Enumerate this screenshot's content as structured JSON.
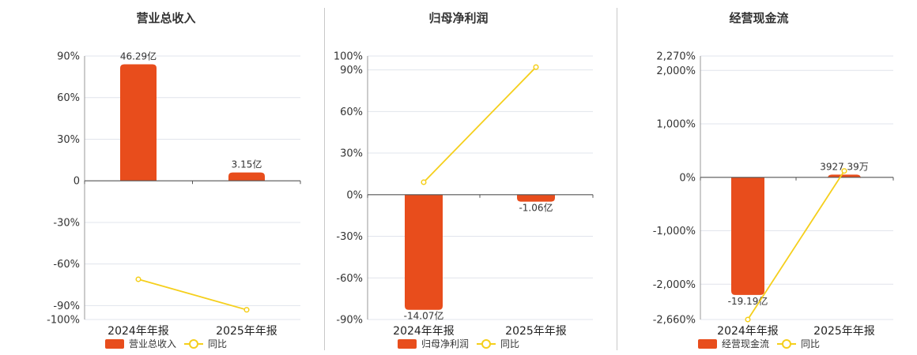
{
  "colors": {
    "bar": "#e84d1c",
    "line": "#f5cf1c",
    "grid": "#e1e4ec",
    "zero": "#555555",
    "axis": "#999999"
  },
  "chart_data": [
    {
      "type": "bar",
      "title": "营业总收入",
      "categories": [
        "2024年年报",
        "2025年年报"
      ],
      "series": [
        {
          "name": "营业总收入",
          "type": "bar",
          "values": [
            46.29,
            3.15
          ],
          "unit": "亿",
          "labels": [
            "46.29亿",
            "3.15亿"
          ],
          "display_percent": [
            84,
            6
          ]
        },
        {
          "name": "同比",
          "type": "line",
          "values": [
            -71,
            -93
          ],
          "unit": "%"
        }
      ],
      "yticks": [
        "90%",
        "60%",
        "30%",
        "0",
        "-30%",
        "-60%",
        "-90%",
        "-100%"
      ],
      "ytick_values": [
        90,
        60,
        30,
        0,
        -30,
        -60,
        -90,
        -100
      ],
      "ylim": [
        -100,
        90
      ],
      "grid": true
    },
    {
      "type": "bar",
      "title": "归母净利润",
      "categories": [
        "2024年年报",
        "2025年年报"
      ],
      "series": [
        {
          "name": "归母净利润",
          "type": "bar",
          "values": [
            -14.07,
            -1.06
          ],
          "unit": "亿",
          "labels": [
            "-14.07亿",
            "-1.06亿"
          ],
          "display_percent": [
            -83,
            -5
          ]
        },
        {
          "name": "同比",
          "type": "line",
          "values": [
            9,
            92
          ],
          "unit": "%"
        }
      ],
      "yticks": [
        "100%",
        "90%",
        "60%",
        "30%",
        "0%",
        "-30%",
        "-60%",
        "-90%"
      ],
      "ytick_values": [
        100,
        90,
        60,
        30,
        0,
        -30,
        -60,
        -90
      ],
      "ylim": [
        -90,
        100
      ],
      "grid": true
    },
    {
      "type": "bar",
      "title": "经营现金流",
      "categories": [
        "2024年年报",
        "2025年年报"
      ],
      "series": [
        {
          "name": "经营现金流",
          "type": "bar",
          "values": [
            -19.19,
            0.39
          ],
          "unit": "亿",
          "labels": [
            "-19.19亿",
            "3927.39万"
          ],
          "display_percent": [
            -2200,
            50
          ]
        },
        {
          "name": "同比",
          "type": "line",
          "values": [
            -2660,
            120
          ],
          "unit": "%"
        }
      ],
      "yticks": [
        "2,270%",
        "2,000%",
        "1,000%",
        "0%",
        "-1,000%",
        "-2,000%",
        "-2,660%"
      ],
      "ytick_values": [
        2270,
        2000,
        1000,
        0,
        -1000,
        -2000,
        -2660
      ],
      "ylim": [
        -2660,
        2270
      ],
      "grid": true
    }
  ]
}
